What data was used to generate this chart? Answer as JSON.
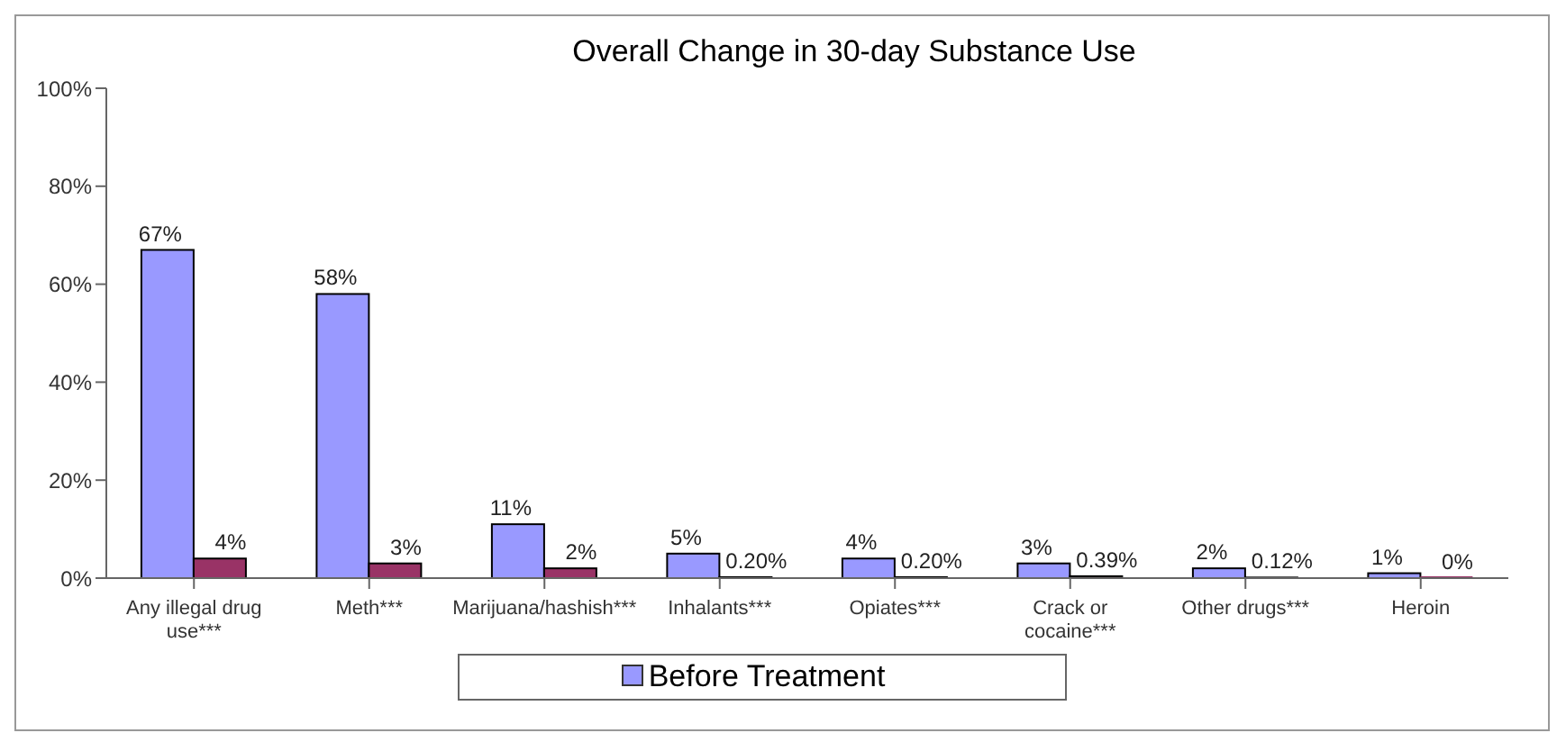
{
  "chart_data": {
    "type": "bar",
    "title": "Overall Change in 30-day Substance Use",
    "categories": [
      "Any illegal drug use***",
      "Meth***",
      "Marijuana/hashish***",
      "Inhalants***",
      "Opiates***",
      "Crack or cocaine***",
      "Other drugs***",
      "Heroin"
    ],
    "series": [
      {
        "name": "Before Treatment",
        "color": "#9999ff",
        "values": [
          67,
          58,
          11,
          5,
          4,
          3,
          2,
          1
        ],
        "value_labels": [
          "67%",
          "58%",
          "11%",
          "5%",
          "4%",
          "3%",
          "2%",
          "1%"
        ]
      },
      {
        "color": "#993366",
        "values": [
          4,
          3,
          2,
          0.2,
          0.2,
          0.39,
          0.12,
          0
        ],
        "value_labels": [
          "4%",
          "3%",
          "2%",
          "0.20%",
          "0.20%",
          "0.39%",
          "0.12%",
          "0%"
        ]
      }
    ],
    "ylim": [
      0,
      100
    ],
    "yticks": [
      {
        "value": 0,
        "label": "0%"
      },
      {
        "value": 20,
        "label": "20%"
      },
      {
        "value": 40,
        "label": "40%"
      },
      {
        "value": 60,
        "label": "60%"
      },
      {
        "value": 80,
        "label": "80%"
      },
      {
        "value": 100,
        "label": "100%"
      }
    ],
    "grid": false,
    "legend": "bottom"
  }
}
